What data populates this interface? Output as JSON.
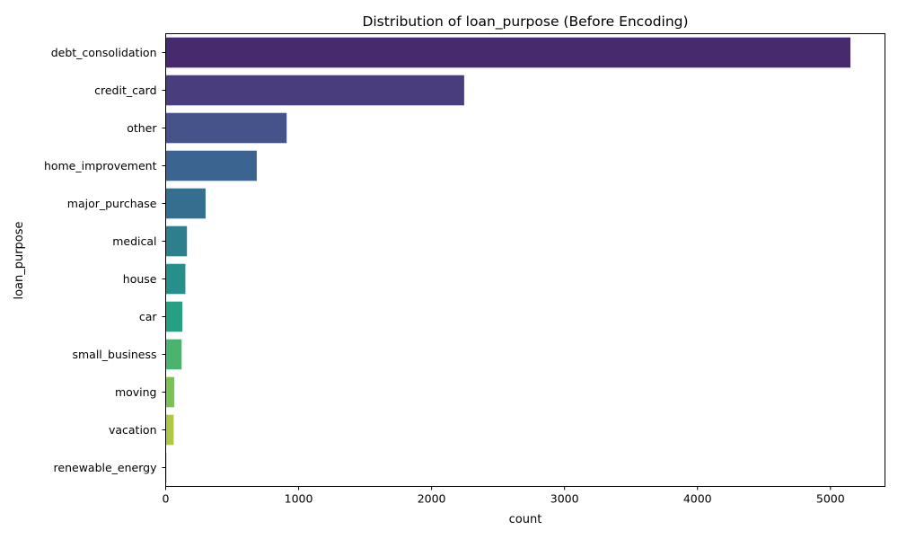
{
  "chart_data": {
    "type": "bar",
    "orientation": "horizontal",
    "title": "Distribution of loan_purpose (Before Encoding)",
    "xlabel": "count",
    "ylabel": "loan_purpose",
    "xlim": [
      0,
      5410
    ],
    "xticks": [
      0,
      1000,
      2000,
      3000,
      4000,
      5000
    ],
    "grid": false,
    "categories": [
      "debt_consolidation",
      "credit_card",
      "other",
      "home_improvement",
      "major_purchase",
      "medical",
      "house",
      "car",
      "small_business",
      "moving",
      "vacation",
      "renewable_energy"
    ],
    "values": [
      5150,
      2245,
      910,
      685,
      300,
      160,
      148,
      125,
      120,
      65,
      60,
      8
    ],
    "colors": [
      "#472a6e",
      "#493d7e",
      "#45538a",
      "#3b6590",
      "#356f8f",
      "#2d7f8e",
      "#268f8b",
      "#25a083",
      "#4ab46f",
      "#7ac256",
      "#aec845",
      "#dce32b"
    ]
  }
}
